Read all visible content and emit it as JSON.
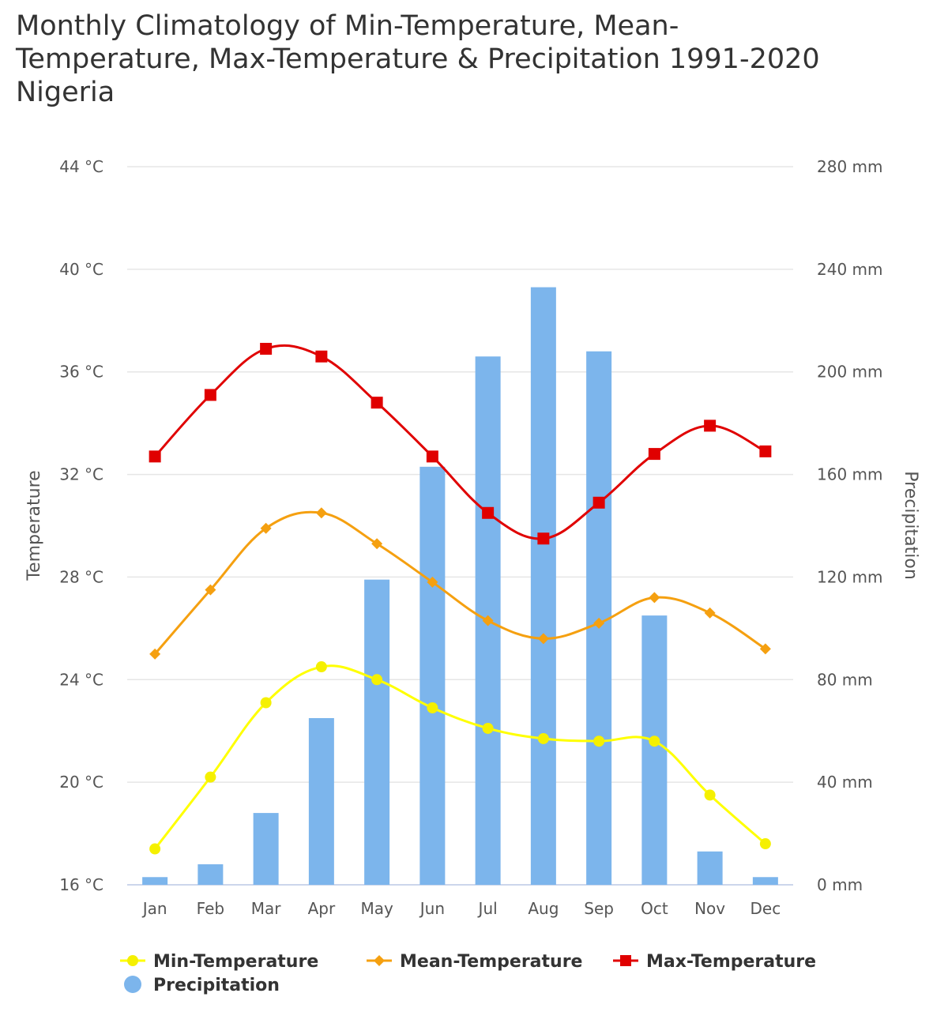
{
  "title_lines": [
    "Monthly Climatology of Min-Temperature, Mean-",
    "Temperature, Max-Temperature & Precipitation 1991-2020",
    "Nigeria"
  ],
  "colors": {
    "min": "#ffff00",
    "min_marker": "#f5f000",
    "mean": "#f5a010",
    "max": "#e00000",
    "precip": "#7cb5ec",
    "grid": "#e6e6e6",
    "axis": "#ccd6eb",
    "text": "#555555"
  },
  "chart_data": {
    "type": "bar+line",
    "title": "Monthly Climatology of Min-Temperature, Mean-Temperature, Max-Temperature & Precipitation 1991-2020 Nigeria",
    "categories": [
      "Jan",
      "Feb",
      "Mar",
      "Apr",
      "May",
      "Jun",
      "Jul",
      "Aug",
      "Sep",
      "Oct",
      "Nov",
      "Dec"
    ],
    "y_left": {
      "label": "Temperature",
      "min": 16,
      "max": 44,
      "ticks": [
        "16 °C",
        "20 °C",
        "24 °C",
        "28 °C",
        "32 °C",
        "36 °C",
        "40 °C",
        "44 °C"
      ]
    },
    "y_right": {
      "label": "Precipitation",
      "min": 0,
      "max": 280,
      "ticks": [
        "0 mm",
        "40 mm",
        "80 mm",
        "120 mm",
        "160 mm",
        "200 mm",
        "240 mm",
        "280 mm"
      ]
    },
    "series": [
      {
        "name": "Min-Temperature",
        "type": "line",
        "axis": "left",
        "marker": "circle",
        "values": [
          17.4,
          20.2,
          23.1,
          24.5,
          24.0,
          22.9,
          22.1,
          21.7,
          21.6,
          21.6,
          19.5,
          17.6
        ]
      },
      {
        "name": "Mean-Temperature",
        "type": "line",
        "axis": "left",
        "marker": "diamond",
        "values": [
          25.0,
          27.5,
          29.9,
          30.5,
          29.3,
          27.8,
          26.3,
          25.6,
          26.2,
          27.2,
          26.6,
          25.2
        ]
      },
      {
        "name": "Max-Temperature",
        "type": "line",
        "axis": "left",
        "marker": "square",
        "values": [
          32.7,
          35.1,
          36.9,
          36.6,
          34.8,
          32.7,
          30.5,
          29.5,
          30.9,
          32.8,
          33.9,
          32.9
        ]
      },
      {
        "name": "Precipitation",
        "type": "bar",
        "axis": "right",
        "values": [
          3,
          8,
          28,
          65,
          119,
          163,
          206,
          233,
          208,
          105,
          13,
          3
        ]
      }
    ],
    "legend_position": "bottom"
  }
}
